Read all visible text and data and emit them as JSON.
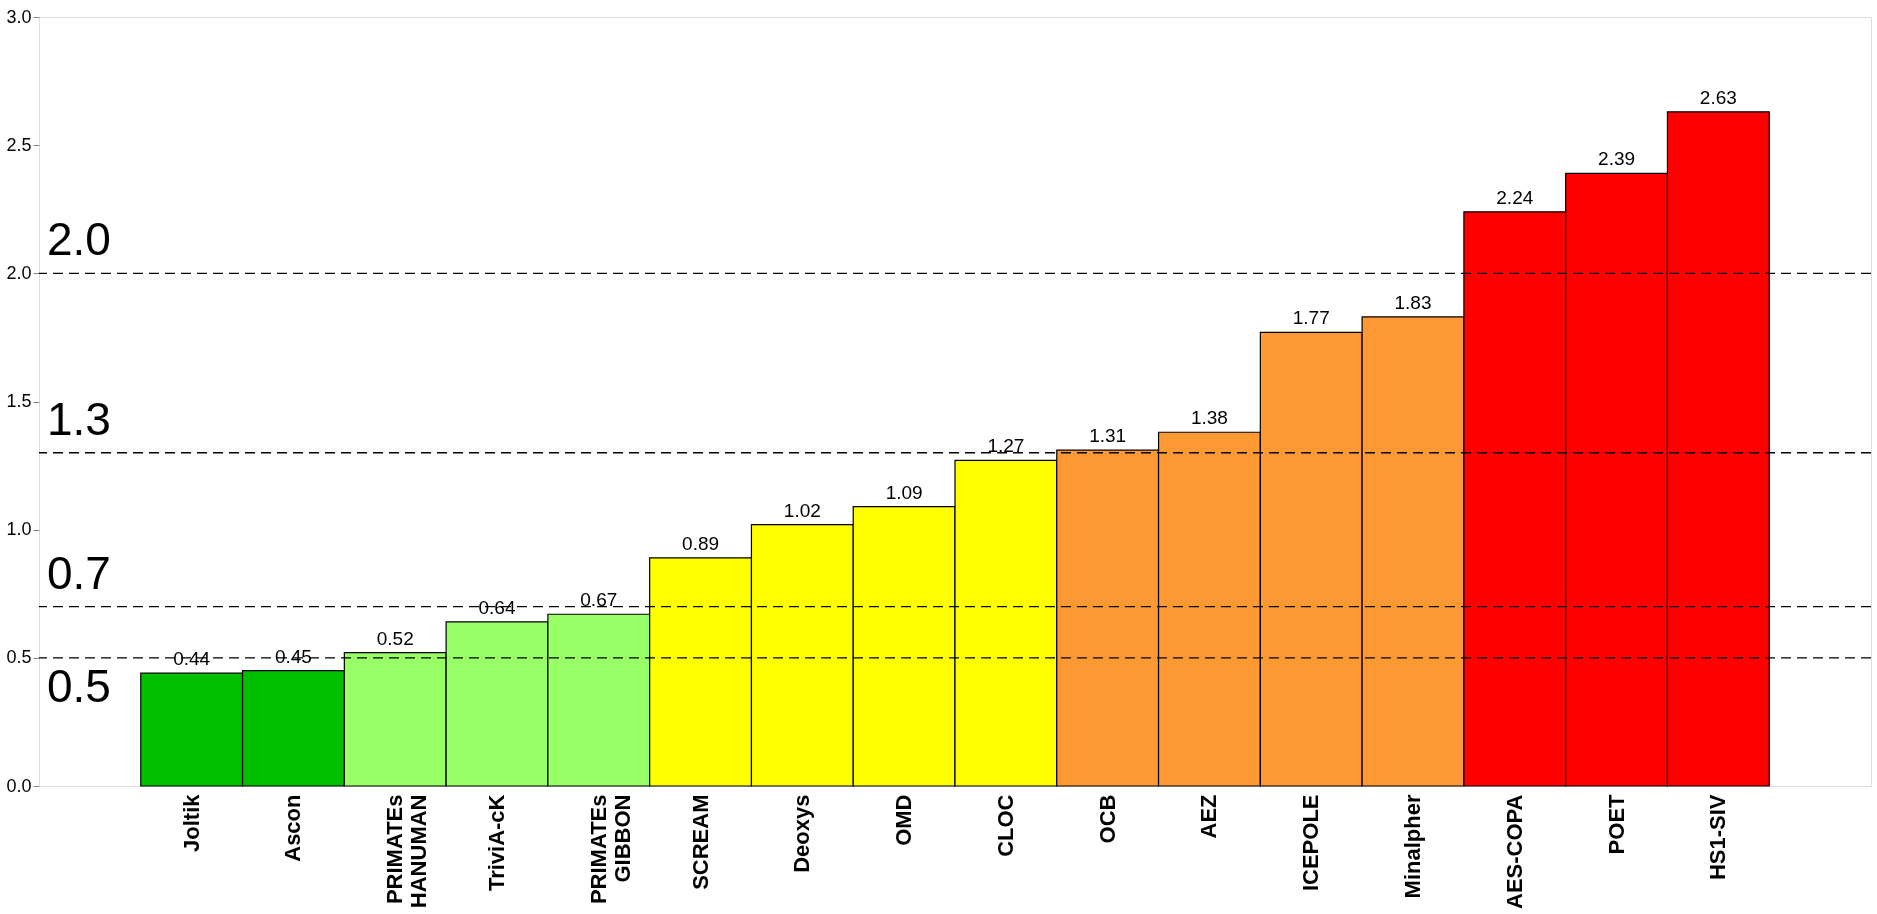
{
  "chart_data": {
    "type": "bar",
    "categories": [
      "Joltik",
      "Ascon",
      "PRIMATEs\nHANUMAN",
      "TriviA-cK",
      "PRIMATEs\nGIBBON",
      "SCREAM",
      "Deoxys",
      "OMD",
      "CLOC",
      "OCB",
      "AEZ",
      "ICEPOLE",
      "Minalpher",
      "AES-COPA",
      "POET",
      "HS1-SIV"
    ],
    "values": [
      0.44,
      0.45,
      0.52,
      0.64,
      0.67,
      0.89,
      1.02,
      1.09,
      1.27,
      1.31,
      1.38,
      1.77,
      1.83,
      2.24,
      2.39,
      2.63
    ],
    "colors": [
      "#00c000",
      "#00c000",
      "#99ff66",
      "#99ff66",
      "#99ff66",
      "#ffff00",
      "#ffff00",
      "#ffff00",
      "#ffff00",
      "#ff9933",
      "#ff9933",
      "#ff9933",
      "#ff9933",
      "#ff0000",
      "#ff0000",
      "#ff0000"
    ],
    "data_labels": true,
    "ylim": [
      0,
      3.0
    ],
    "yticks": [
      {
        "value": 0,
        "label": "0.0"
      },
      0.5,
      {
        "value": 1,
        "label": "1.0"
      },
      1.5,
      {
        "value": 2,
        "label": "2.0"
      },
      2.5,
      {
        "value": 3,
        "label": "3.0"
      }
    ],
    "ref_lines": [
      {
        "axis": "y",
        "value": 2.0,
        "label": "2.0",
        "line_style": "dashed"
      },
      {
        "axis": "y",
        "value": 1.3,
        "label": "1.3",
        "line_style": "dashed"
      },
      {
        "axis": "y",
        "value": 0.7,
        "label": "0.7",
        "line_style": "dashed"
      },
      {
        "axis": "y",
        "value": 0.5,
        "label": "0.5",
        "line_style": "dashed"
      }
    ],
    "grid": false
  }
}
